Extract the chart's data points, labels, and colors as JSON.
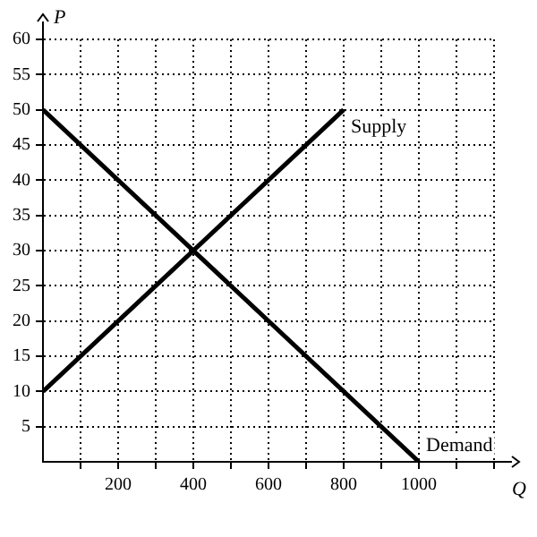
{
  "chart_data": {
    "type": "line",
    "xlabel": "Q",
    "ylabel": "P",
    "series": [
      {
        "name": "Supply",
        "color": "#000000",
        "x": [
          0,
          800
        ],
        "values": [
          10,
          50
        ]
      },
      {
        "name": "Demand",
        "color": "#000000",
        "x": [
          0,
          1000
        ],
        "values": [
          50,
          0
        ]
      }
    ],
    "xlim": [
      0,
      1200
    ],
    "ylim": [
      0,
      60
    ],
    "xticks": [
      {
        "value": 100,
        "label": null
      },
      200,
      {
        "value": 300,
        "label": null
      },
      400,
      {
        "value": 500,
        "label": null
      },
      600,
      {
        "value": 700,
        "label": null
      },
      800,
      {
        "value": 900,
        "label": null
      },
      1000,
      {
        "value": 1100,
        "label": null
      },
      {
        "value": 1200,
        "label": null
      }
    ],
    "yticks": [
      5,
      10,
      15,
      20,
      25,
      30,
      35,
      40,
      45,
      50,
      55,
      60
    ],
    "grid": true,
    "legend": false,
    "marker": "none",
    "line_style": "solid"
  }
}
